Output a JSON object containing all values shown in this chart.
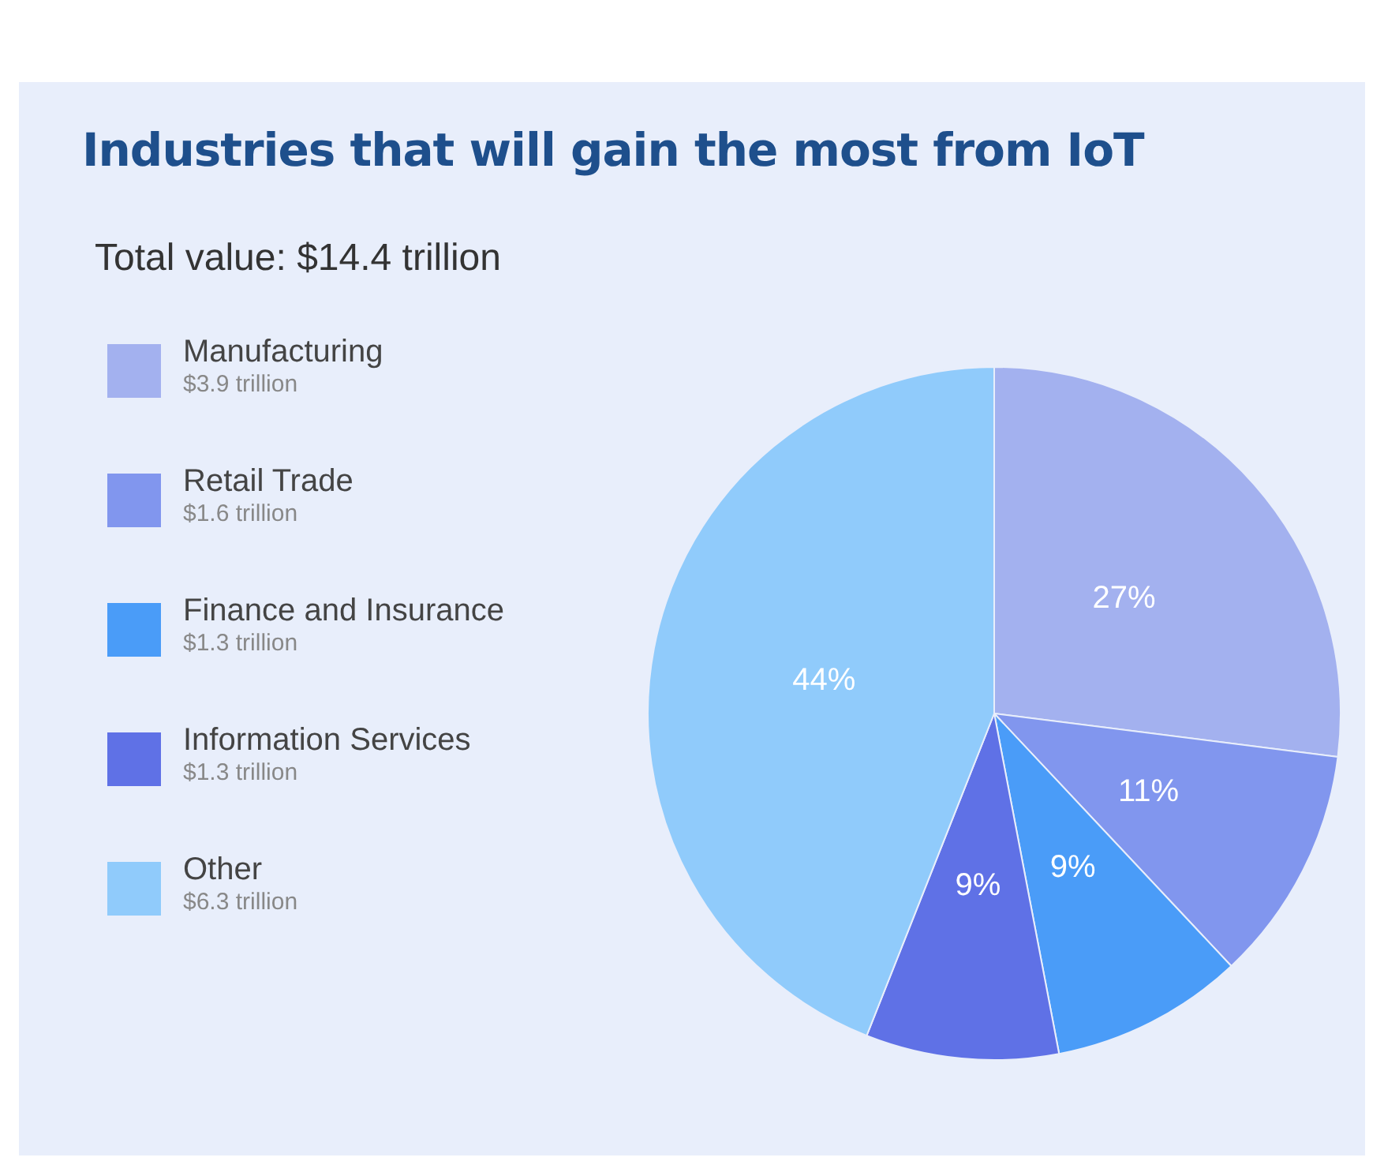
{
  "chart_data": {
    "type": "pie",
    "title": "Industries that will gain the most from IoT",
    "subtitle": "Total value: $14.4 trillion",
    "categories": [
      "Manufacturing",
      "Retail Trade",
      "Finance and Insurance",
      "Information Services",
      "Other"
    ],
    "values": [
      27,
      11,
      9,
      9,
      44
    ],
    "value_labels": [
      "27%",
      "11%",
      "9%",
      "9%",
      "44%"
    ],
    "colors": [
      "#a3b1ef",
      "#8196ee",
      "#4a9cf8",
      "#5f71e6",
      "#90cbfb"
    ],
    "annotations": [
      "$3.9 trillion",
      "$1.6 trillion",
      "$1.3 trillion",
      "$1.3 trillion",
      "$6.3 trillion"
    ],
    "legend": "left"
  }
}
